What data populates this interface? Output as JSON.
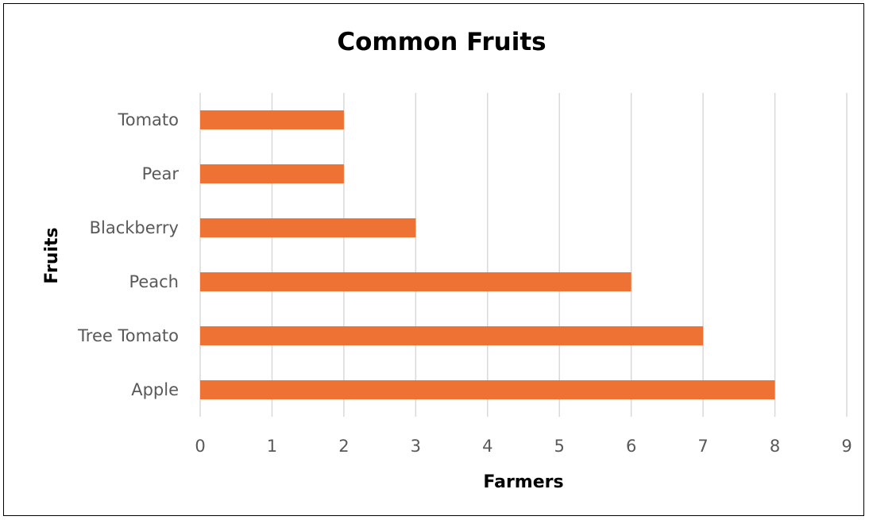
{
  "chart_data": {
    "type": "bar",
    "orientation": "horizontal",
    "title": "Common Fruits",
    "xlabel": "Farmers",
    "ylabel": "Fruits",
    "categories": [
      "Apple",
      "Tree Tomato",
      "Peach",
      "Blackberry",
      "Pear",
      "Tomato"
    ],
    "values": [
      8,
      7,
      6,
      3,
      2,
      2
    ],
    "xlim": [
      0,
      9
    ],
    "xticks": [
      "0",
      "1",
      "2",
      "3",
      "4",
      "5",
      "6",
      "7",
      "8",
      "9"
    ],
    "grid": true,
    "legend": "none",
    "bar_color": "#ED7234",
    "grid_color": "#D9D9D9"
  }
}
